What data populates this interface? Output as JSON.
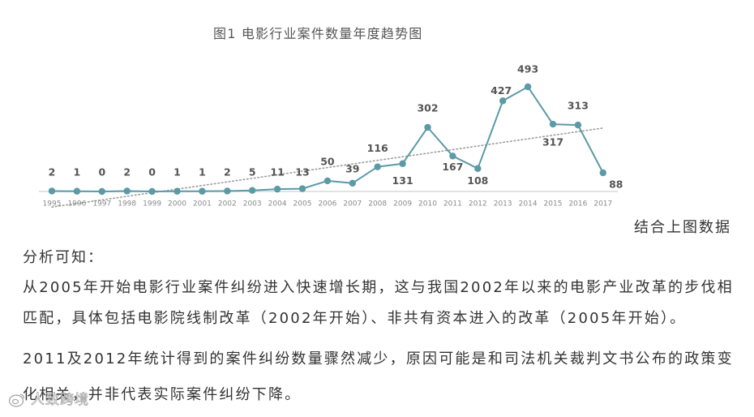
{
  "chart_data": {
    "type": "line",
    "title": "图1 电影行业案件数量年度趋势图",
    "x": [
      "1995",
      "1996",
      "1997",
      "1998",
      "1999",
      "2000",
      "2001",
      "2002",
      "2003",
      "2004",
      "2005",
      "2006",
      "2007",
      "2008",
      "2009",
      "2010",
      "2011",
      "2012",
      "2013",
      "2014",
      "2015",
      "2016",
      "2017"
    ],
    "series": [
      {
        "values": [
          2,
          1,
          0,
          2,
          0,
          1,
          1,
          2,
          5,
          11,
          13,
          50,
          39,
          116,
          131,
          302,
          167,
          108,
          427,
          493,
          317,
          313,
          88
        ]
      }
    ],
    "data_labels": true,
    "trendline": "linear",
    "y_axis_visible": false,
    "grid": false,
    "legend": false,
    "colors": {
      "line": "#5b9aa6",
      "marker": "#5b9aa6",
      "trendline": "#9c9c9c",
      "axis": "#d9d9d9",
      "data_labels": "#555555",
      "tick_labels": "#8a8a8a"
    }
  },
  "caption_right": "结合上图数据",
  "analysis": {
    "heading": "分析可知：",
    "paragraphs": [
      {
        "lines": [
          "从2005年开始电影行业案件纠纷进入快速增长期，这与我国2002年以来的电影产业改革的步伐相",
          "匹配，具体包括电影院线制改革（2002年开始）、非共有资本进入的改革（2005年开始）。"
        ]
      },
      {
        "lines": [
          "2011及2012年统计得到的案件纠纷数量骤然减少，原因可能是和司法机关裁判文书公布的政策变",
          "化相关，并非代表实际案件纠纷下降。"
        ]
      }
    ]
  },
  "watermark": {
    "text": "人致跨境",
    "icon": "watermark-logo-icon"
  }
}
